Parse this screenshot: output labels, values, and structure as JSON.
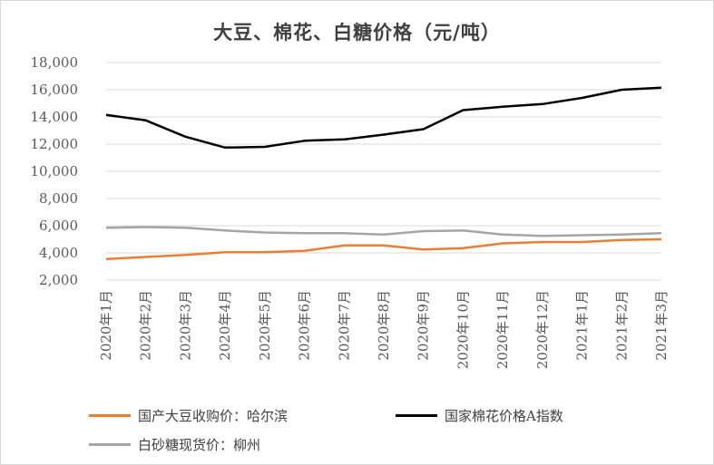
{
  "chart_data": {
    "type": "line",
    "title": "大豆、棉花、白糖价格（元/吨）",
    "categories": [
      "2020年1月",
      "2020年2月",
      "2020年3月",
      "2020年4月",
      "2020年5月",
      "2020年6月",
      "2020年7月",
      "2020年8月",
      "2020年9月",
      "2020年10月",
      "2020年11月",
      "2020年12月",
      "2021年1月",
      "2021年2月",
      "2021年3月"
    ],
    "ylim": [
      2000,
      18000
    ],
    "yticks": [
      2000,
      4000,
      6000,
      8000,
      10000,
      12000,
      14000,
      16000,
      18000
    ],
    "ytick_labels": [
      "2,000",
      "4,000",
      "6,000",
      "8,000",
      "10,000",
      "12,000",
      "14,000",
      "16,000",
      "18,000"
    ],
    "grid": true,
    "legend_position": "bottom",
    "series": [
      {
        "name": "国产大豆收购价：哈尔滨",
        "color": "#ed7d31",
        "values": [
          3550,
          3700,
          3850,
          4050,
          4050,
          4150,
          4550,
          4550,
          4250,
          4350,
          4700,
          4800,
          4800,
          4950,
          5000
        ]
      },
      {
        "name": "国家棉花价格A指数",
        "color": "#000000",
        "values": [
          14150,
          13750,
          12550,
          11750,
          11800,
          12250,
          12350,
          12700,
          13100,
          14500,
          14750,
          14950,
          15400,
          16000,
          16150
        ]
      },
      {
        "name": "白砂糖现货价：柳州",
        "color": "#a5a5a5",
        "values": [
          5850,
          5900,
          5850,
          5650,
          5500,
          5450,
          5450,
          5350,
          5600,
          5650,
          5350,
          5250,
          5300,
          5350,
          5450
        ]
      }
    ]
  }
}
